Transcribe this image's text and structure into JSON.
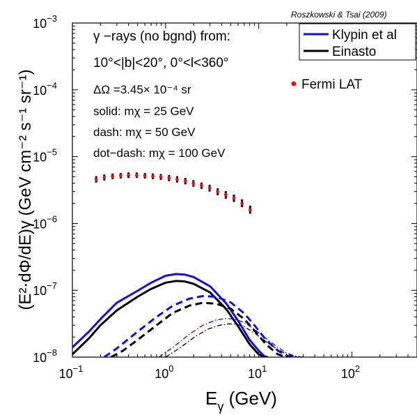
{
  "chart_data": {
    "type": "line",
    "title": "",
    "credit": "Roszkowski & Tsai (2009)",
    "xlabel": {
      "base": "E",
      "sub": "γ",
      "unit": " (GeV)"
    },
    "ylabel": {
      "text": "(E²·dΦ/dE)γ (GeV cm⁻² s⁻¹ sr⁻¹)"
    },
    "xscale": "log",
    "yscale": "log",
    "xlim": [
      0.1,
      500
    ],
    "ylim": [
      1e-08,
      0.001
    ],
    "x_ticks": [
      {
        "value": 0.1,
        "base": "10",
        "exp": "−1"
      },
      {
        "value": 1,
        "base": "10",
        "exp": "0"
      },
      {
        "value": 10,
        "base": "10",
        "exp": "1"
      },
      {
        "value": 100,
        "base": "10",
        "exp": "2"
      }
    ],
    "y_ticks": [
      {
        "value": 1e-08,
        "base": "10",
        "exp": "−8"
      },
      {
        "value": 1e-07,
        "base": "10",
        "exp": "−7"
      },
      {
        "value": 1e-06,
        "base": "10",
        "exp": "−6"
      },
      {
        "value": 1e-05,
        "base": "10",
        "exp": "−5"
      },
      {
        "value": 0.0001,
        "base": "10",
        "exp": "−4"
      },
      {
        "value": 0.001,
        "base": "10",
        "exp": "−3"
      }
    ],
    "annotations": {
      "line1": "γ −rays (no bgnd) from:",
      "line2": "10°<|b|<20°, 0°<l<360°",
      "line3": "ΔΩ =3.45× 10⁻⁴ sr",
      "line4": "solid: mχ = 25 GeV",
      "line5": "dash: mχ = 50 GeV",
      "line6": "dot−dash: mχ = 100 GeV"
    },
    "legend": {
      "placement": "top-right",
      "entries": [
        {
          "name": "Klypin et al",
          "color": "#1010d8"
        },
        {
          "name": "Einasto",
          "color": "#000000"
        },
        {
          "name": "Fermi LAT",
          "color": "#ee1111"
        }
      ]
    },
    "fermi_data": {
      "name": "Fermi LAT",
      "color": "#ee1111",
      "x": [
        0.18,
        0.22,
        0.27,
        0.33,
        0.4,
        0.49,
        0.6,
        0.73,
        0.89,
        1.09,
        1.33,
        1.63,
        1.99,
        2.43,
        2.97,
        3.63,
        4.43,
        5.42,
        6.62,
        8.09
      ],
      "y": [
        4.6e-06,
        4.9e-06,
        5.1e-06,
        5.2e-06,
        5.3e-06,
        5.3e-06,
        5.2e-06,
        5.1e-06,
        5e-06,
        4.8e-06,
        4.6e-06,
        4.3e-06,
        4e-06,
        3.7e-06,
        3.4e-06,
        3e-06,
        2.7e-06,
        2.4e-06,
        2e-06,
        1.6e-06
      ],
      "err_lo": [
        4.1e-06,
        4.4e-06,
        4.6e-06,
        4.7e-06,
        4.8e-06,
        4.8e-06,
        4.7e-06,
        4.6e-06,
        4.5e-06,
        4.3e-06,
        4.1e-06,
        3.85e-06,
        3.55e-06,
        3.3e-06,
        3e-06,
        2.65e-06,
        2.35e-06,
        2.1e-06,
        1.75e-06,
        1.4e-06
      ],
      "err_hi": [
        5.1e-06,
        5.4e-06,
        5.6e-06,
        5.7e-06,
        5.8e-06,
        5.8e-06,
        5.7e-06,
        5.6e-06,
        5.5e-06,
        5.3e-06,
        5.1e-06,
        4.8e-06,
        4.45e-06,
        4.1e-06,
        3.8e-06,
        3.35e-06,
        3.05e-06,
        2.7e-06,
        2.3e-06,
        1.85e-06
      ]
    },
    "series": [
      {
        "name": "Klypin et al",
        "mass": "25 GeV",
        "style": "solid",
        "color": "#1010d8",
        "width": 3,
        "x": [
          0.1,
          0.15,
          0.2,
          0.3,
          0.5,
          0.7,
          1.0,
          1.3,
          1.6,
          2.0,
          3.0,
          4.5,
          6.0,
          8.0,
          10.0,
          11.5,
          12.5
        ],
        "y": [
          1.4e-08,
          2.4e-08,
          3.7e-08,
          6.5e-08,
          9.8e-08,
          1.3e-07,
          1.65e-07,
          1.75e-07,
          1.72e-07,
          1.58e-07,
          1.15e-07,
          6.3e-08,
          3.5e-08,
          1.8e-08,
          1.25e-08,
          1.03e-08,
          1e-08
        ]
      },
      {
        "name": "Einasto",
        "mass": "25 GeV",
        "style": "solid",
        "color": "#000000",
        "width": 3,
        "x": [
          0.1,
          0.15,
          0.2,
          0.3,
          0.5,
          0.7,
          1.0,
          1.3,
          1.6,
          2.0,
          3.0,
          4.5,
          6.0,
          8.0,
          10.0,
          11.0,
          12.0
        ],
        "y": [
          1.1e-08,
          1.9e-08,
          3e-08,
          5e-08,
          8e-08,
          1.05e-07,
          1.3e-07,
          1.38e-07,
          1.36e-07,
          1.25e-07,
          9.3e-08,
          5.2e-08,
          2.9e-08,
          1.55e-08,
          1.1e-08,
          1.03e-08,
          1e-08
        ]
      },
      {
        "name": "Klypin et al",
        "mass": "50 GeV",
        "style": "dash",
        "color": "#1010d8",
        "width": 3,
        "x": [
          0.22,
          0.3,
          0.5,
          0.8,
          1.2,
          1.8,
          2.5,
          3.5,
          5.0,
          7.0,
          9.0,
          12.0,
          16.0,
          20.0,
          23.0
        ],
        "y": [
          1e-08,
          1.35e-08,
          2.4e-08,
          4e-08,
          5.9e-08,
          7.5e-08,
          8.2e-08,
          8e-08,
          6.6e-08,
          4.5e-08,
          3e-08,
          1.8e-08,
          1.25e-08,
          1.05e-08,
          1e-08
        ]
      },
      {
        "name": "Einasto",
        "mass": "50 GeV",
        "style": "dash",
        "color": "#000000",
        "width": 3,
        "x": [
          0.26,
          0.35,
          0.5,
          0.8,
          1.2,
          1.8,
          2.5,
          3.5,
          5.0,
          7.0,
          9.0,
          12.0,
          16.0,
          19.0,
          21.0
        ],
        "y": [
          1e-08,
          1.25e-08,
          1.8e-08,
          3e-08,
          4.6e-08,
          5.9e-08,
          6.5e-08,
          6.3e-08,
          5.3e-08,
          3.7e-08,
          2.5e-08,
          1.55e-08,
          1.1e-08,
          1.02e-08,
          1e-08
        ]
      },
      {
        "name": "Klypin et al",
        "mass": "100 GeV",
        "style": "dot-dash",
        "color": "#1010d8",
        "width": 1.3,
        "x": [
          0.85,
          1.2,
          1.8,
          2.5,
          3.5,
          4.5,
          5.5,
          7.0,
          9.0,
          12.0,
          16.0,
          20.0,
          25.0,
          30.0
        ],
        "y": [
          1e-08,
          1.4e-08,
          2.2e-08,
          3e-08,
          3.6e-08,
          3.8e-08,
          3.7e-08,
          3.3e-08,
          2.6e-08,
          1.9e-08,
          1.4e-08,
          1.15e-08,
          1.03e-08,
          1e-08
        ]
      },
      {
        "name": "Einasto",
        "mass": "100 GeV",
        "style": "dot-dash",
        "color": "#000000",
        "width": 1.3,
        "x": [
          1.0,
          1.4,
          2.0,
          2.8,
          3.8,
          4.8,
          5.8,
          7.0,
          9.0,
          12.0,
          16.0,
          20.0,
          25.0,
          28.0
        ],
        "y": [
          1e-08,
          1.35e-08,
          1.95e-08,
          2.6e-08,
          3e-08,
          3.15e-08,
          3.1e-08,
          2.85e-08,
          2.3e-08,
          1.7e-08,
          1.3e-08,
          1.1e-08,
          1.02e-08,
          1e-08
        ]
      }
    ]
  }
}
